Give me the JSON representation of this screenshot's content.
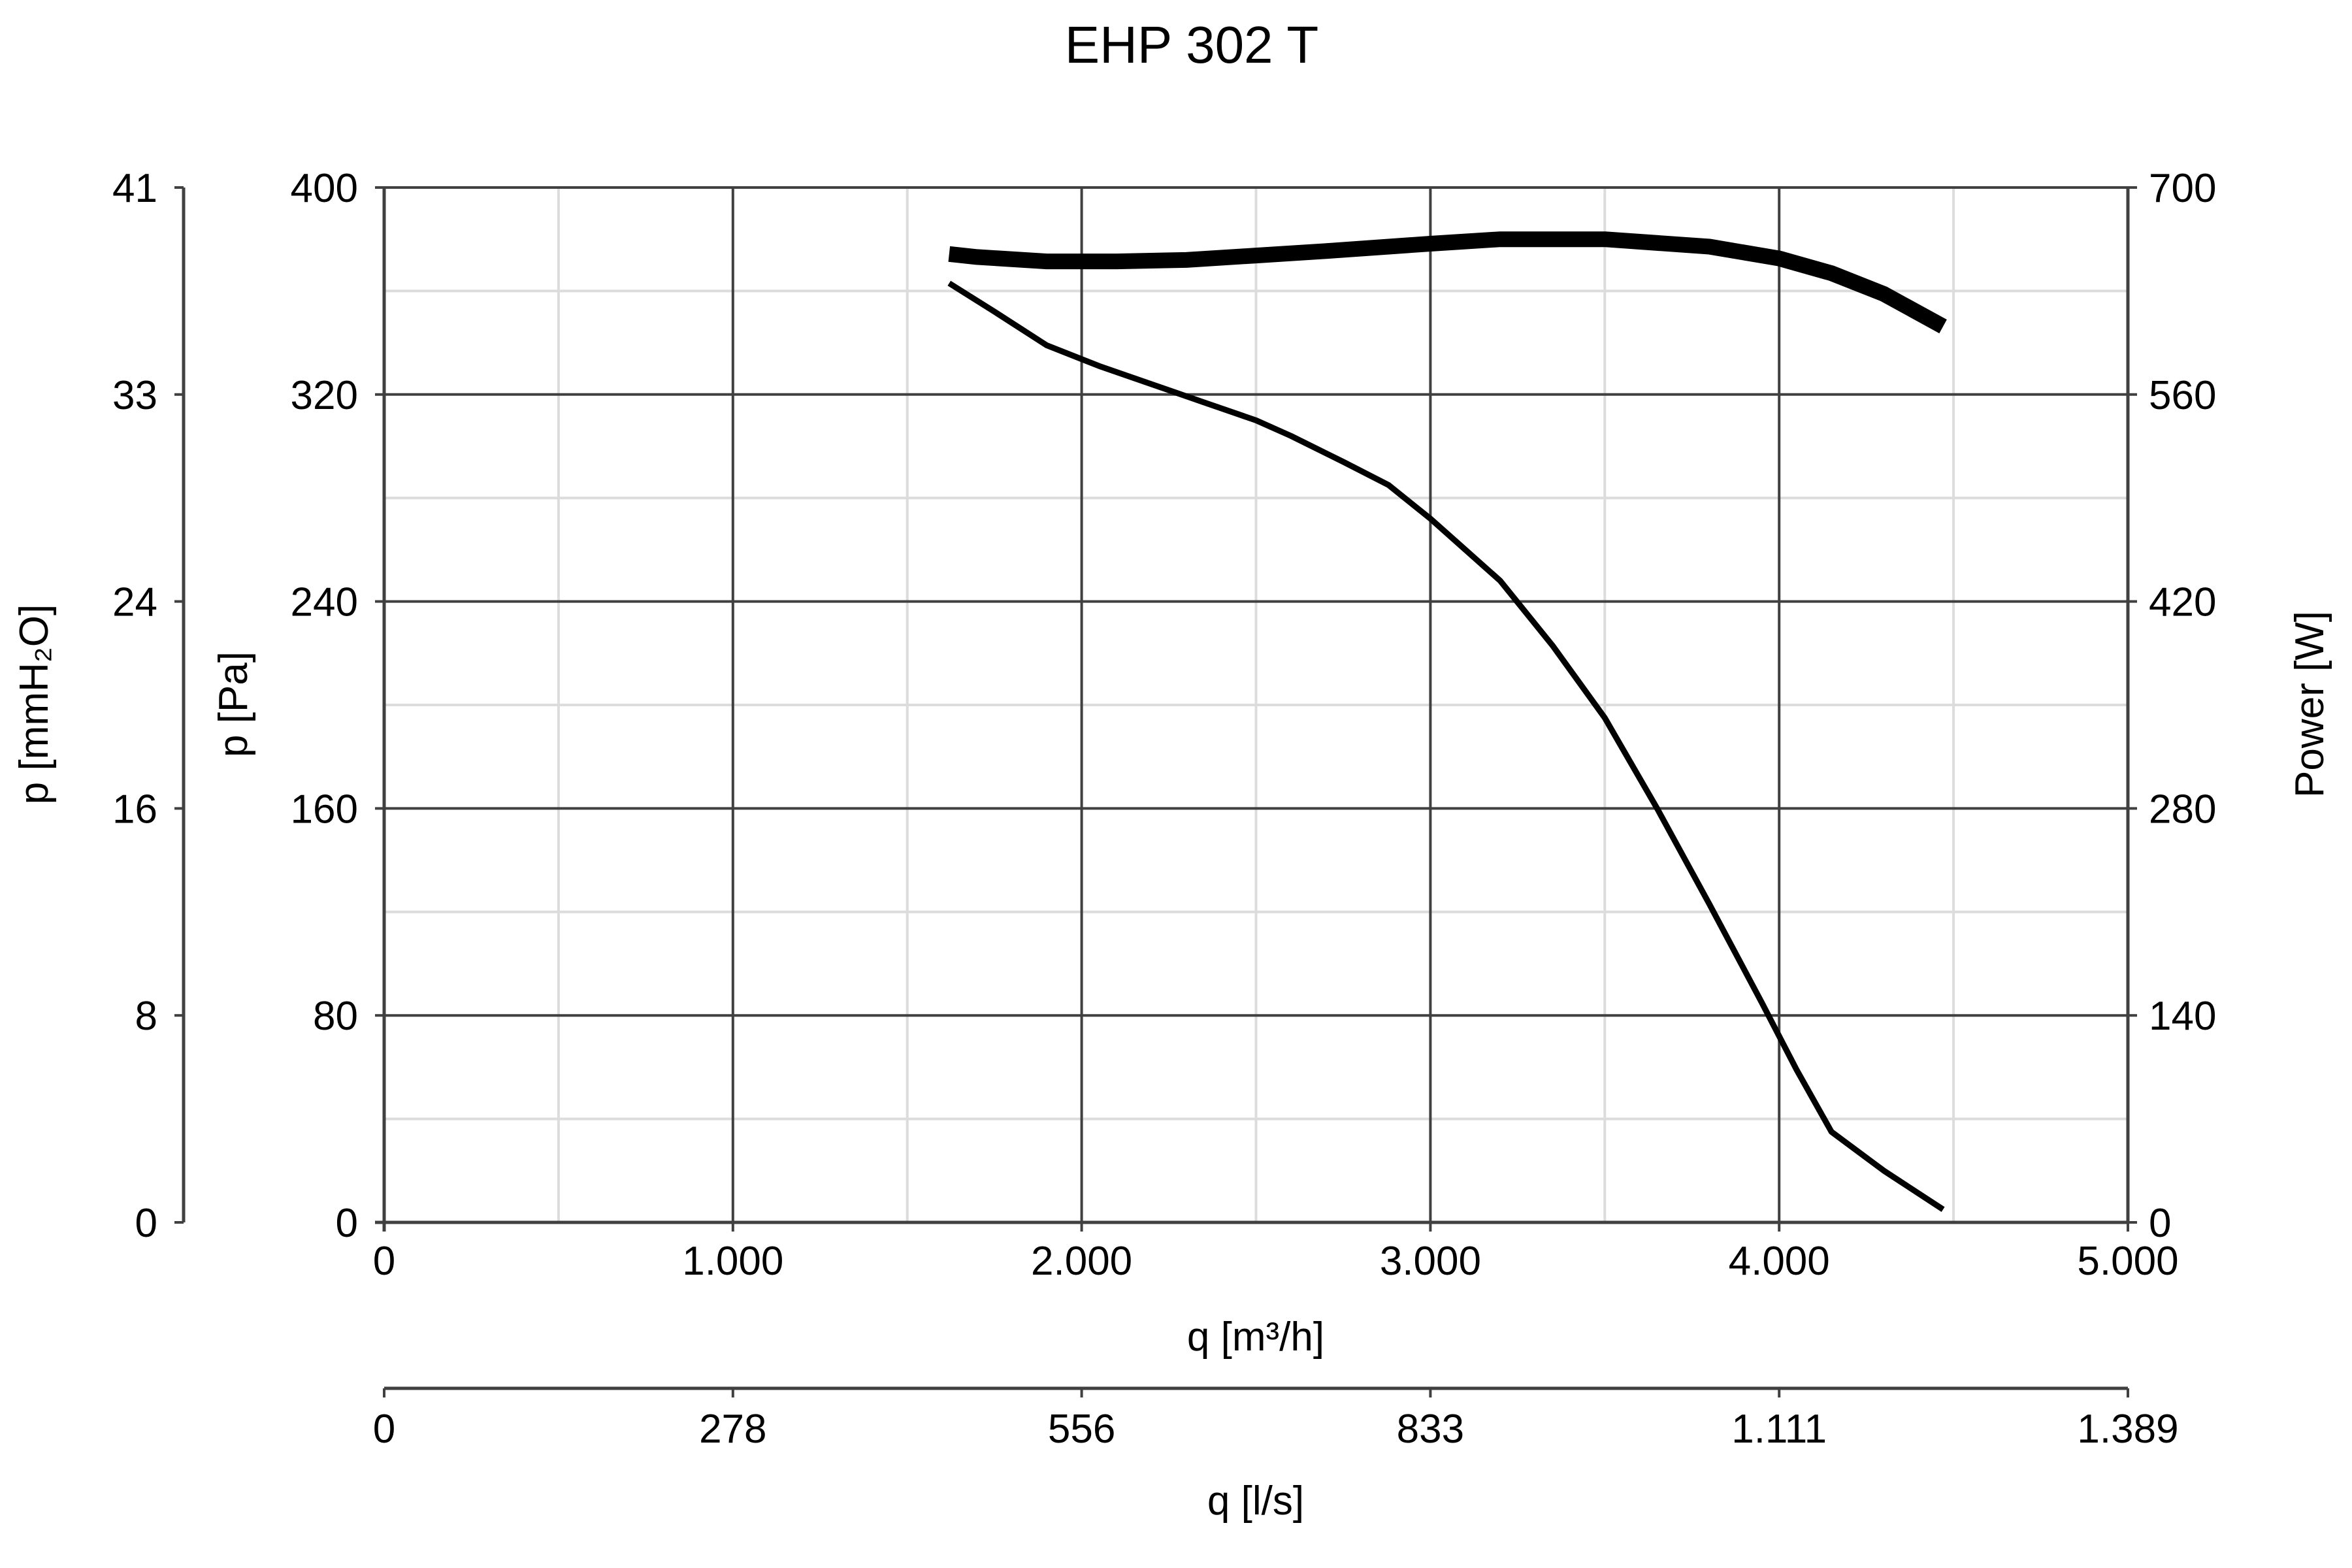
{
  "chart_data": {
    "type": "line",
    "title": "EHP 302 T",
    "x_axis": {
      "label": "q [m³/h]",
      "range": [
        0,
        5000
      ],
      "ticks": [
        0,
        1000,
        2000,
        3000,
        4000,
        5000
      ],
      "tick_labels": [
        "0",
        "1.000",
        "2.000",
        "3.000",
        "4.000",
        "5.000"
      ],
      "minor_ticks": [
        500,
        1500,
        2500,
        3500,
        4500
      ]
    },
    "x2_axis": {
      "label": "q [l/s]",
      "ticks": [
        0,
        1000,
        2000,
        3000,
        4000,
        5000
      ],
      "tick_labels": [
        "0",
        "278",
        "556",
        "833",
        "1.111",
        "1.389"
      ]
    },
    "y_axis": {
      "label": "p [Pa]",
      "range": [
        0,
        400
      ],
      "ticks": [
        0,
        80,
        160,
        240,
        320,
        400
      ],
      "tick_labels": [
        "0",
        "80",
        "160",
        "240",
        "320",
        "400"
      ],
      "minor_ticks": [
        40,
        120,
        200,
        280,
        360
      ]
    },
    "y2_axis": {
      "label": "p [mmH₂O]",
      "ticks": [
        0,
        80,
        160,
        240,
        320,
        400
      ],
      "tick_labels": [
        "0",
        "8",
        "16",
        "24",
        "33",
        "41"
      ]
    },
    "y3_axis": {
      "label": "Power [W]",
      "range": [
        0,
        700
      ],
      "ticks": [
        0,
        140,
        280,
        420,
        560,
        700
      ],
      "tick_labels": [
        "0",
        "140",
        "280",
        "420",
        "560",
        "700"
      ]
    },
    "grid": true,
    "series": [
      {
        "id": "pressure",
        "axis": "y",
        "line_weight": "thin",
        "color": "#000000",
        "x": [
          1620,
          1750,
          1900,
          2050,
          2200,
          2350,
          2500,
          2600,
          2750,
          2880,
          3000,
          3100,
          3200,
          3350,
          3500,
          3650,
          3800,
          3950,
          4050,
          4150,
          4300,
          4470
        ],
        "y": [
          363,
          352,
          339,
          331,
          324,
          317,
          310,
          304,
          294,
          285,
          272,
          260,
          248,
          223,
          195,
          160,
          123,
          85,
          59,
          35,
          20,
          5
        ]
      },
      {
        "id": "power",
        "axis": "y3",
        "line_weight": "thick",
        "color": "#000000",
        "x": [
          1620,
          1700,
          1900,
          2100,
          2300,
          2500,
          2700,
          3000,
          3200,
          3500,
          3800,
          4000,
          4150,
          4300,
          4470
        ],
        "y": [
          655,
          653,
          650,
          650,
          651,
          654,
          657,
          662,
          665,
          665,
          660,
          652,
          642,
          628,
          606
        ]
      }
    ]
  }
}
